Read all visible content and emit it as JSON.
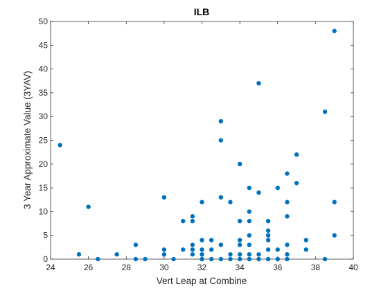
{
  "chart_data": {
    "type": "scatter",
    "title": "ILB",
    "xlabel": "Vert Leap at Combine",
    "ylabel": "3 Year Approximate Value (3YAV)",
    "xlim": [
      24,
      40
    ],
    "ylim": [
      0,
      50
    ],
    "xticks": [
      24,
      26,
      28,
      30,
      32,
      34,
      36,
      38,
      40
    ],
    "yticks": [
      0,
      5,
      10,
      15,
      20,
      25,
      30,
      35,
      40,
      45,
      50
    ],
    "grid": false,
    "legend": "none",
    "marker_color": "#0072BD",
    "series": [
      {
        "points": [
          [
            24.5,
            24
          ],
          [
            25.5,
            1
          ],
          [
            26,
            11
          ],
          [
            26.5,
            0
          ],
          [
            27.5,
            1
          ],
          [
            28.5,
            3
          ],
          [
            28.5,
            0
          ],
          [
            29,
            0
          ],
          [
            30,
            13
          ],
          [
            30,
            2
          ],
          [
            30,
            1
          ],
          [
            30.5,
            0
          ],
          [
            31,
            8
          ],
          [
            31,
            2
          ],
          [
            31.5,
            9
          ],
          [
            31.5,
            8
          ],
          [
            31.5,
            3
          ],
          [
            31.5,
            2
          ],
          [
            31.5,
            1
          ],
          [
            32,
            12
          ],
          [
            32,
            4
          ],
          [
            32,
            2
          ],
          [
            32,
            1
          ],
          [
            32,
            0
          ],
          [
            32.5,
            4
          ],
          [
            32.5,
            2
          ],
          [
            32.5,
            0
          ],
          [
            33,
            29
          ],
          [
            33,
            25
          ],
          [
            33,
            13
          ],
          [
            33,
            3
          ],
          [
            33,
            0
          ],
          [
            33.5,
            12
          ],
          [
            33.5,
            1
          ],
          [
            33.5,
            0
          ],
          [
            34,
            20
          ],
          [
            34,
            8
          ],
          [
            34,
            4
          ],
          [
            34,
            3
          ],
          [
            34,
            1
          ],
          [
            34,
            0
          ],
          [
            34.5,
            15
          ],
          [
            34.5,
            10
          ],
          [
            34.5,
            8
          ],
          [
            34.5,
            5
          ],
          [
            34.5,
            3
          ],
          [
            34.5,
            1
          ],
          [
            34.5,
            0
          ],
          [
            35,
            37
          ],
          [
            35,
            14
          ],
          [
            35,
            1
          ],
          [
            35,
            0
          ],
          [
            35.5,
            8
          ],
          [
            35.5,
            6
          ],
          [
            35.5,
            5
          ],
          [
            35.5,
            4
          ],
          [
            35.5,
            2
          ],
          [
            35.5,
            0
          ],
          [
            36,
            15
          ],
          [
            36,
            2
          ],
          [
            36,
            0
          ],
          [
            36.5,
            18
          ],
          [
            36.5,
            12
          ],
          [
            36.5,
            9
          ],
          [
            36.5,
            3
          ],
          [
            36.5,
            1
          ],
          [
            36.5,
            0
          ],
          [
            37,
            22
          ],
          [
            37,
            16
          ],
          [
            37.5,
            4
          ],
          [
            37.5,
            2
          ],
          [
            38.5,
            31
          ],
          [
            38.5,
            0
          ],
          [
            39,
            48
          ],
          [
            39,
            12
          ],
          [
            39,
            5
          ]
        ]
      }
    ]
  }
}
